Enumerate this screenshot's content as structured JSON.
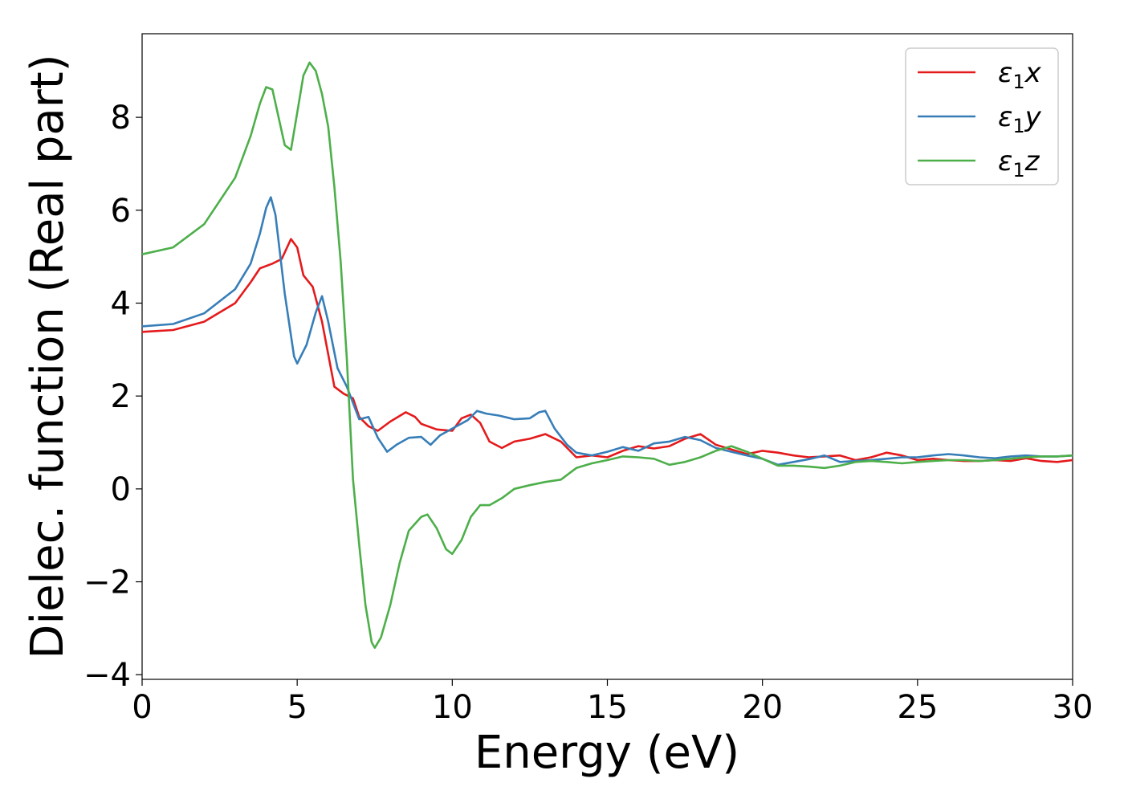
{
  "chart_data": {
    "type": "line",
    "title": "",
    "xlabel": "Energy (eV)",
    "ylabel": "Dielec. function (Real part)",
    "xlim": [
      0,
      30
    ],
    "ylim": [
      -4.1,
      9.8
    ],
    "xticks": [
      0,
      5,
      10,
      15,
      20,
      25,
      30
    ],
    "xtick_labels": [
      "0",
      "5",
      "10",
      "15",
      "20",
      "25",
      "30"
    ],
    "yticks": [
      -4,
      -2,
      0,
      2,
      4,
      6,
      8
    ],
    "ytick_labels": [
      "−4",
      "−2",
      "0",
      "2",
      "4",
      "6",
      "8"
    ],
    "grid": false,
    "legend_position": "top-right",
    "series": [
      {
        "name": "ε₁x",
        "legend_base": "ε",
        "legend_sub": "1",
        "legend_var": "x",
        "color": "#e41a1c",
        "x": [
          0,
          1,
          2,
          3,
          3.5,
          3.8,
          4.2,
          4.5,
          4.8,
          5.0,
          5.2,
          5.5,
          5.8,
          6.0,
          6.2,
          6.5,
          6.8,
          7.0,
          7.3,
          7.6,
          8.0,
          8.5,
          8.8,
          9.0,
          9.5,
          10.0,
          10.3,
          10.6,
          10.9,
          11.2,
          11.6,
          12.0,
          12.5,
          13.0,
          13.5,
          14.0,
          14.5,
          15.0,
          15.5,
          16.0,
          16.5,
          17.0,
          17.5,
          18.0,
          18.5,
          19.0,
          19.5,
          20.0,
          20.5,
          21.0,
          21.5,
          22.0,
          22.5,
          23.0,
          23.5,
          24.0,
          24.5,
          25.0,
          25.5,
          26.0,
          26.5,
          27.0,
          27.5,
          28.0,
          28.5,
          29.0,
          29.5,
          30.0
        ],
        "y": [
          3.38,
          3.42,
          3.6,
          4.0,
          4.45,
          4.75,
          4.85,
          4.95,
          5.38,
          5.2,
          4.6,
          4.35,
          3.6,
          2.9,
          2.2,
          2.05,
          1.95,
          1.55,
          1.35,
          1.25,
          1.45,
          1.65,
          1.55,
          1.4,
          1.28,
          1.25,
          1.52,
          1.6,
          1.42,
          1.02,
          0.88,
          1.02,
          1.08,
          1.18,
          1.02,
          0.68,
          0.72,
          0.68,
          0.82,
          0.92,
          0.87,
          0.92,
          1.08,
          1.18,
          0.95,
          0.85,
          0.75,
          0.82,
          0.78,
          0.72,
          0.68,
          0.7,
          0.72,
          0.62,
          0.68,
          0.78,
          0.72,
          0.62,
          0.65,
          0.62,
          0.6,
          0.6,
          0.62,
          0.6,
          0.66,
          0.6,
          0.58,
          0.62
        ]
      },
      {
        "name": "ε₁y",
        "legend_base": "ε",
        "legend_sub": "1",
        "legend_var": "y",
        "color": "#377eb8",
        "x": [
          0,
          1,
          2,
          3,
          3.5,
          3.8,
          4.0,
          4.15,
          4.3,
          4.6,
          4.9,
          5.0,
          5.3,
          5.6,
          5.8,
          6.0,
          6.3,
          6.6,
          7.0,
          7.3,
          7.6,
          7.9,
          8.2,
          8.6,
          9.0,
          9.3,
          9.6,
          10.0,
          10.5,
          10.8,
          11.1,
          11.5,
          12.0,
          12.5,
          12.8,
          13.0,
          13.3,
          13.7,
          14.0,
          14.5,
          15.0,
          15.5,
          16.0,
          16.5,
          17.0,
          17.5,
          18.0,
          18.5,
          19.0,
          19.5,
          20.0,
          20.5,
          21.0,
          21.5,
          22.0,
          22.5,
          23.0,
          23.5,
          24.0,
          24.5,
          25.0,
          25.5,
          26.0,
          26.5,
          27.0,
          27.5,
          28.0,
          28.5,
          29.0,
          29.5,
          30.0
        ],
        "y": [
          3.5,
          3.55,
          3.78,
          4.3,
          4.85,
          5.5,
          6.05,
          6.28,
          5.9,
          4.2,
          2.85,
          2.7,
          3.1,
          3.8,
          4.15,
          3.6,
          2.6,
          2.2,
          1.5,
          1.55,
          1.1,
          0.8,
          0.95,
          1.1,
          1.12,
          0.95,
          1.15,
          1.3,
          1.48,
          1.68,
          1.62,
          1.58,
          1.5,
          1.52,
          1.65,
          1.68,
          1.3,
          0.95,
          0.78,
          0.72,
          0.8,
          0.9,
          0.82,
          0.98,
          1.02,
          1.12,
          1.05,
          0.88,
          0.8,
          0.72,
          0.65,
          0.52,
          0.58,
          0.64,
          0.72,
          0.58,
          0.6,
          0.62,
          0.65,
          0.68,
          0.68,
          0.72,
          0.75,
          0.72,
          0.68,
          0.66,
          0.7,
          0.72,
          0.7,
          0.7,
          0.72
        ]
      },
      {
        "name": "ε₁z",
        "legend_base": "ε",
        "legend_sub": "1",
        "legend_var": "z",
        "color": "#4daf4a",
        "x": [
          0,
          1,
          2,
          3,
          3.5,
          3.8,
          4.0,
          4.2,
          4.4,
          4.6,
          4.8,
          5.0,
          5.2,
          5.4,
          5.6,
          5.8,
          6.0,
          6.2,
          6.4,
          6.6,
          6.8,
          7.0,
          7.2,
          7.4,
          7.5,
          7.7,
          8.0,
          8.3,
          8.6,
          9.0,
          9.2,
          9.5,
          9.8,
          10.0,
          10.3,
          10.6,
          10.9,
          11.2,
          11.6,
          12.0,
          12.5,
          13.0,
          13.5,
          14.0,
          14.5,
          15.0,
          15.5,
          16.0,
          16.5,
          17.0,
          17.5,
          18.0,
          18.5,
          19.0,
          19.5,
          20.0,
          20.5,
          21.0,
          21.5,
          22.0,
          22.5,
          23.0,
          23.5,
          24.0,
          24.5,
          25.0,
          25.5,
          26.0,
          26.5,
          27.0,
          27.5,
          28.0,
          28.5,
          29.0,
          29.5,
          30.0
        ],
        "y": [
          5.05,
          5.2,
          5.7,
          6.7,
          7.6,
          8.3,
          8.65,
          8.6,
          8.0,
          7.4,
          7.3,
          8.1,
          8.9,
          9.18,
          9.0,
          8.5,
          7.8,
          6.5,
          4.9,
          2.8,
          0.2,
          -1.2,
          -2.5,
          -3.3,
          -3.42,
          -3.2,
          -2.5,
          -1.6,
          -0.9,
          -0.6,
          -0.55,
          -0.85,
          -1.3,
          -1.4,
          -1.1,
          -0.6,
          -0.35,
          -0.35,
          -0.2,
          0.0,
          0.08,
          0.15,
          0.2,
          0.45,
          0.55,
          0.62,
          0.7,
          0.68,
          0.65,
          0.52,
          0.58,
          0.68,
          0.82,
          0.92,
          0.8,
          0.65,
          0.5,
          0.5,
          0.48,
          0.45,
          0.5,
          0.58,
          0.6,
          0.58,
          0.55,
          0.58,
          0.6,
          0.62,
          0.62,
          0.6,
          0.62,
          0.65,
          0.68,
          0.7,
          0.7,
          0.72
        ]
      }
    ]
  }
}
